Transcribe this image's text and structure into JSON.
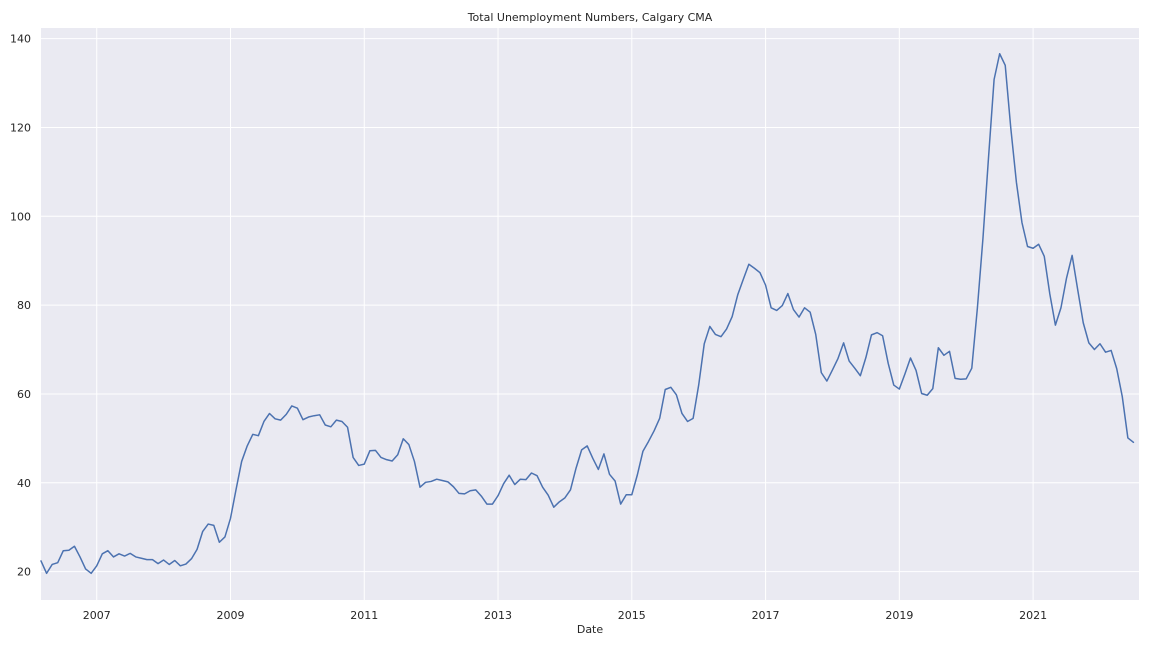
{
  "chart_data": {
    "type": "line",
    "title": "Total Unemployment Numbers, Calgary CMA",
    "xlabel": "Date",
    "ylabel": "",
    "x_range": [
      "2006-03",
      "2022-08"
    ],
    "ylim": [
      13.6,
      142.4
    ],
    "grid": true,
    "background": "#eaeaf2",
    "line_color": "#4c72b0",
    "x_ticks": [
      "2007",
      "2009",
      "2011",
      "2013",
      "2015",
      "2017",
      "2019",
      "2021"
    ],
    "y_ticks": [
      20,
      40,
      60,
      80,
      100,
      120,
      140
    ],
    "series": [
      {
        "start": "2006-03",
        "frequency": "monthly",
        "values": [
          22.4,
          19.6,
          21.6,
          22.0,
          24.7,
          24.8,
          25.7,
          23.3,
          20.6,
          19.6,
          21.3,
          24.0,
          24.7,
          23.3,
          24.0,
          23.5,
          24.1,
          23.3,
          23.0,
          22.7,
          22.7,
          21.8,
          22.6,
          21.6,
          22.5,
          21.3,
          21.7,
          22.9,
          25.0,
          29.0,
          30.7,
          30.4,
          26.6,
          27.8,
          32.0,
          38.5,
          44.8,
          48.3,
          50.9,
          50.6,
          53.8,
          55.6,
          54.4,
          54.1,
          55.4,
          57.3,
          56.8,
          54.2,
          54.8,
          55.1,
          55.3,
          53.0,
          52.6,
          54.1,
          53.8,
          52.5,
          45.7,
          43.9,
          44.2,
          47.2,
          47.3,
          45.7,
          45.2,
          44.9,
          46.3,
          49.9,
          48.6,
          44.8,
          39.0,
          40.1,
          40.3,
          40.8,
          40.5,
          40.2,
          39.1,
          37.6,
          37.5,
          38.2,
          38.4,
          37.0,
          35.2,
          35.2,
          37.1,
          39.8,
          41.7,
          39.6,
          40.8,
          40.7,
          42.2,
          41.6,
          39.0,
          37.2,
          34.5,
          35.7,
          36.6,
          38.4,
          43.3,
          47.4,
          48.3,
          45.5,
          43.0,
          46.5,
          41.9,
          40.4,
          35.2,
          37.3,
          37.3,
          41.8,
          47.1,
          49.3,
          51.7,
          54.5,
          61.0,
          61.5,
          59.8,
          55.6,
          53.8,
          54.5,
          62.0,
          71.3,
          75.2,
          73.4,
          72.9,
          74.6,
          77.4,
          82.3,
          85.8,
          89.2,
          88.3,
          87.3,
          84.5,
          79.4,
          78.8,
          79.9,
          82.6,
          79.0,
          77.3,
          79.4,
          78.4,
          73.4,
          64.8,
          62.9,
          65.4,
          68.0,
          71.5,
          67.4,
          65.8,
          64.1,
          68.2,
          73.3,
          73.8,
          73.1,
          66.9,
          62.0,
          61.1,
          64.5,
          68.1,
          65.3,
          60.1,
          59.7,
          61.2,
          70.4,
          68.7,
          69.6,
          63.5,
          63.3,
          63.4,
          65.8,
          79.3,
          95.0,
          113.2,
          130.8,
          136.6,
          134.0,
          119.8,
          107.7,
          98.6,
          93.2,
          92.8,
          93.7,
          91.0,
          82.5,
          75.5,
          79.4,
          86.1,
          91.2,
          83.5,
          76.0,
          71.5,
          70.0,
          71.3,
          69.4,
          69.8,
          65.7,
          59.4,
          50.1,
          49.1
        ]
      }
    ]
  }
}
